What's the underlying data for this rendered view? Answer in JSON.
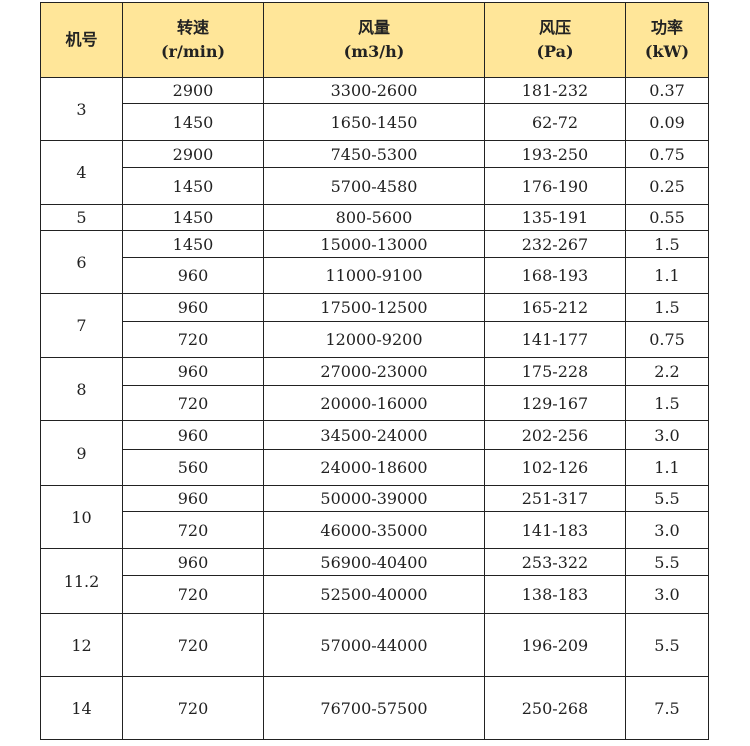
{
  "header_bg": "#FFE699",
  "headers": [
    {
      "title": "机号",
      "unit": ""
    },
    {
      "title": "转速",
      "unit": "(r/min)"
    },
    {
      "title": "风量",
      "unit": "(m3/h)"
    },
    {
      "title": "风压",
      "unit": "(Pa)"
    },
    {
      "title": "功率",
      "unit": "(kW)"
    }
  ],
  "groups": [
    {
      "model": "3",
      "rows": [
        [
          "2900",
          "3300-2600",
          "181-232",
          "0.37"
        ],
        [
          "1450",
          "1650-1450",
          "62-72",
          "0.09"
        ]
      ]
    },
    {
      "model": "4",
      "rows": [
        [
          "2900",
          "7450-5300",
          "193-250",
          "0.75"
        ],
        [
          "1450",
          "5700-4580",
          "176-190",
          "0.25"
        ]
      ]
    },
    {
      "model": "5",
      "rows": [
        [
          "1450",
          "800-5600",
          "135-191",
          "0.55"
        ]
      ]
    },
    {
      "model": "6",
      "rows": [
        [
          "1450",
          "15000-13000",
          "232-267",
          "1.5"
        ],
        [
          "960",
          "11000-9100",
          "168-193",
          "1.1"
        ]
      ]
    },
    {
      "model": "7",
      "rows": [
        [
          "960",
          "17500-12500",
          "165-212",
          "1.5"
        ],
        [
          "720",
          "12000-9200",
          "141-177",
          "0.75"
        ]
      ]
    },
    {
      "model": "8",
      "rows": [
        [
          "960",
          "27000-23000",
          "175-228",
          "2.2"
        ],
        [
          "720",
          "20000-16000",
          "129-167",
          "1.5"
        ]
      ]
    },
    {
      "model": "9",
      "rows": [
        [
          "960",
          "34500-24000",
          "202-256",
          "3.0"
        ],
        [
          "560",
          "24000-18600",
          "102-126",
          "1.1"
        ]
      ]
    },
    {
      "model": "10",
      "rows": [
        [
          "960",
          "50000-39000",
          "251-317",
          "5.5"
        ],
        [
          "720",
          "46000-35000",
          "141-183",
          "3.0"
        ]
      ]
    },
    {
      "model": "11.2",
      "rows": [
        [
          "960",
          "56900-40400",
          "253-322",
          "5.5"
        ],
        [
          "720",
          "52500-40000",
          "138-183",
          "3.0"
        ]
      ]
    },
    {
      "model": "12",
      "rows": [
        [
          "720",
          "57000-44000",
          "196-209",
          "5.5"
        ]
      ]
    },
    {
      "model": "14",
      "rows": [
        [
          "720",
          "76700-57500",
          "250-268",
          "7.5"
        ]
      ]
    }
  ]
}
